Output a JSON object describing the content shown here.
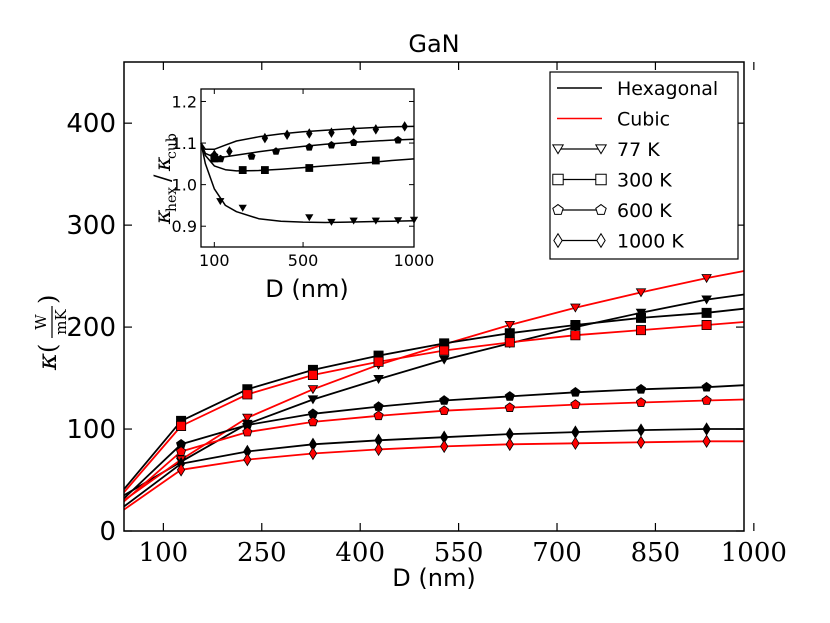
{
  "chart_data": [
    {
      "type": "line",
      "title": "GaN",
      "xlabel": "D (nm)",
      "ylabel": "κ(W/mK)",
      "ylabel_parts": {
        "symbol": "κ",
        "num": "W",
        "den": "mK"
      },
      "xlim": [
        40,
        985
      ],
      "ylim": [
        0,
        460
      ],
      "xticks": [
        100,
        250,
        400,
        550,
        700,
        850,
        1000
      ],
      "yticks": [
        0,
        100,
        200,
        300,
        400
      ],
      "x": [
        40,
        127,
        228,
        328,
        428,
        528,
        628,
        728,
        828,
        928
      ],
      "series": [
        {
          "name": "77 K hexagonal",
          "color": "#000000",
          "marker": "triangle-down",
          "temperature": "77 K",
          "values": [
            35,
            68,
            105,
            129,
            149,
            168,
            184,
            200,
            214,
            227
          ],
          "end": 232
        },
        {
          "name": "77 K cubic",
          "color": "#ff0000",
          "marker": "triangle-down",
          "temperature": "77 K",
          "values": [
            30,
            70,
            111,
            139,
            163,
            183,
            202,
            219,
            234,
            248
          ],
          "end": 255
        },
        {
          "name": "300 K hexagonal",
          "color": "#000000",
          "marker": "square",
          "temperature": "300 K",
          "values": [
            41,
            108,
            139,
            158,
            172,
            184,
            194,
            202,
            209,
            214
          ],
          "end": 218
        },
        {
          "name": "300 K cubic",
          "color": "#ff0000",
          "marker": "square",
          "temperature": "300 K",
          "values": [
            38,
            103,
            134,
            153,
            166,
            177,
            185,
            192,
            197,
            202
          ],
          "end": 205
        },
        {
          "name": "600 K hexagonal",
          "color": "#000000",
          "marker": "pentagon",
          "temperature": "600 K",
          "values": [
            32,
            85,
            104,
            115,
            122,
            128,
            132,
            136,
            139,
            141
          ],
          "end": 143
        },
        {
          "name": "600 K cubic",
          "color": "#ff0000",
          "marker": "pentagon",
          "temperature": "600 K",
          "values": [
            29,
            78,
            97,
            107,
            113,
            118,
            121,
            124,
            126,
            128
          ],
          "end": 129
        },
        {
          "name": "1000 K hexagonal",
          "color": "#000000",
          "marker": "diamond",
          "temperature": "1000 K",
          "values": [
            24,
            66,
            78,
            85,
            89,
            92,
            95,
            97,
            99,
            100
          ],
          "end": 100
        },
        {
          "name": "1000 K cubic",
          "color": "#ff0000",
          "marker": "diamond",
          "temperature": "1000 K",
          "values": [
            21,
            60,
            70,
            76,
            80,
            83,
            85,
            86,
            87,
            88
          ],
          "end": 88
        }
      ],
      "legend": {
        "placement": "top-right",
        "entries": [
          {
            "label": "Hexagonal",
            "kind": "line",
            "color": "#000000"
          },
          {
            "label": "Cubic",
            "kind": "line",
            "color": "#ff0000"
          },
          {
            "label": "77 K",
            "kind": "marker",
            "marker": "triangle-down"
          },
          {
            "label": "300 K",
            "kind": "marker",
            "marker": "square"
          },
          {
            "label": "600 K",
            "kind": "marker",
            "marker": "pentagon"
          },
          {
            "label": "1000 K",
            "kind": "marker",
            "marker": "diamond"
          }
        ]
      }
    },
    {
      "type": "line",
      "title": "",
      "inset": true,
      "placement": "top-left",
      "xlabel": "D (nm)",
      "ylabel": "κhex/κcub",
      "ylabel_parts": {
        "k1": "κ",
        "sub1": "hex",
        "slash": "/",
        "k2": "κ",
        "sub2": "cub"
      },
      "xlim": [
        40,
        1000
      ],
      "ylim": [
        0.85,
        1.23
      ],
      "xticks": [
        100,
        500,
        1000
      ],
      "yticks": [
        0.9,
        1.0,
        1.1,
        1.2
      ],
      "series": [
        {
          "name": "77 K",
          "marker": "triangle-down",
          "x": [
            127,
            228,
            528,
            628,
            728,
            828,
            928,
            1000
          ],
          "values": [
            0.96,
            0.944,
            0.921,
            0.91,
            0.913,
            0.913,
            0.914,
            0.915
          ],
          "curve_x": [
            40,
            60,
            100,
            150,
            200,
            300,
            400,
            500,
            600,
            700,
            800,
            900,
            1000
          ],
          "curve_y": [
            1.1,
            1.05,
            0.99,
            0.95,
            0.935,
            0.918,
            0.912,
            0.91,
            0.909,
            0.91,
            0.911,
            0.912,
            0.913
          ]
        },
        {
          "name": "300 K",
          "marker": "square",
          "x": [
            100,
            228,
            328,
            528,
            828
          ],
          "values": [
            1.063,
            1.035,
            1.035,
            1.04,
            1.058
          ],
          "curve_x": [
            40,
            60,
            100,
            150,
            200,
            300,
            400,
            500,
            600,
            700,
            800,
            900,
            1000
          ],
          "curve_y": [
            1.1,
            1.07,
            1.045,
            1.036,
            1.033,
            1.034,
            1.037,
            1.041,
            1.045,
            1.049,
            1.053,
            1.058,
            1.062
          ]
        },
        {
          "name": "600 K",
          "marker": "pentagon",
          "x": [
            100,
            128,
            268,
            378,
            528,
            628,
            728,
            928
          ],
          "values": [
            1.07,
            1.062,
            1.068,
            1.08,
            1.09,
            1.095,
            1.101,
            1.107
          ],
          "curve_x": [
            40,
            60,
            100,
            150,
            200,
            300,
            400,
            500,
            600,
            700,
            800,
            900,
            1000
          ],
          "curve_y": [
            1.1,
            1.075,
            1.066,
            1.067,
            1.071,
            1.079,
            1.086,
            1.092,
            1.097,
            1.101,
            1.104,
            1.107,
            1.109
          ]
        },
        {
          "name": "1000 K",
          "marker": "diamond",
          "x": [
            100,
            168,
            328,
            428,
            528,
            628,
            728,
            828,
            958
          ],
          "values": [
            1.072,
            1.08,
            1.112,
            1.12,
            1.123,
            1.125,
            1.13,
            1.133,
            1.14
          ],
          "curve_x": [
            40,
            60,
            100,
            150,
            200,
            300,
            400,
            500,
            600,
            700,
            800,
            900,
            1000
          ],
          "curve_y": [
            1.1,
            1.085,
            1.085,
            1.095,
            1.105,
            1.115,
            1.122,
            1.127,
            1.131,
            1.134,
            1.137,
            1.139,
            1.14
          ]
        }
      ]
    }
  ]
}
